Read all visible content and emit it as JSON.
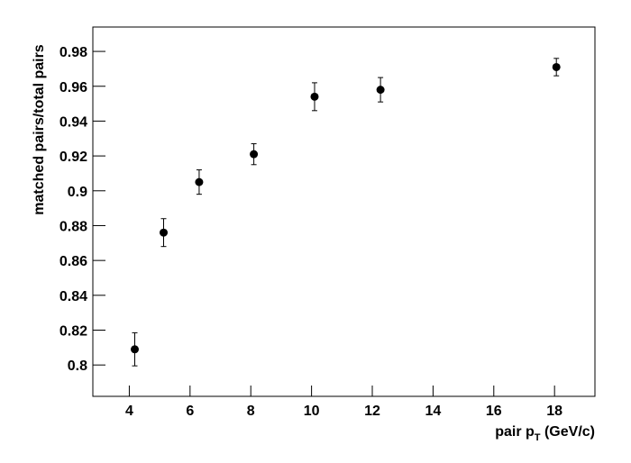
{
  "chart_data": {
    "type": "errorbar",
    "y_label": "matched pairs/total pairs",
    "x_label": [
      "pair p",
      "T",
      " (GeV/c)"
    ],
    "x": [
      4.18,
      5.13,
      6.3,
      8.1,
      10.1,
      12.27,
      18.06
    ],
    "values": [
      0.809,
      0.876,
      0.905,
      0.921,
      0.954,
      0.958,
      0.971
    ],
    "errors": [
      0.0095,
      0.008,
      0.007,
      0.006,
      0.008,
      0.007,
      0.005
    ],
    "color": "#000000",
    "xlim": [
      2.8,
      19.33
    ],
    "xticks": [
      4,
      6,
      8,
      10,
      12,
      14,
      16,
      18
    ],
    "ylim": [
      0.782,
      0.994
    ],
    "yticks": [
      0.8,
      0.82,
      0.84,
      0.86,
      0.88,
      0.9,
      0.92,
      0.94,
      0.96,
      0.98
    ],
    "grid": false
  }
}
